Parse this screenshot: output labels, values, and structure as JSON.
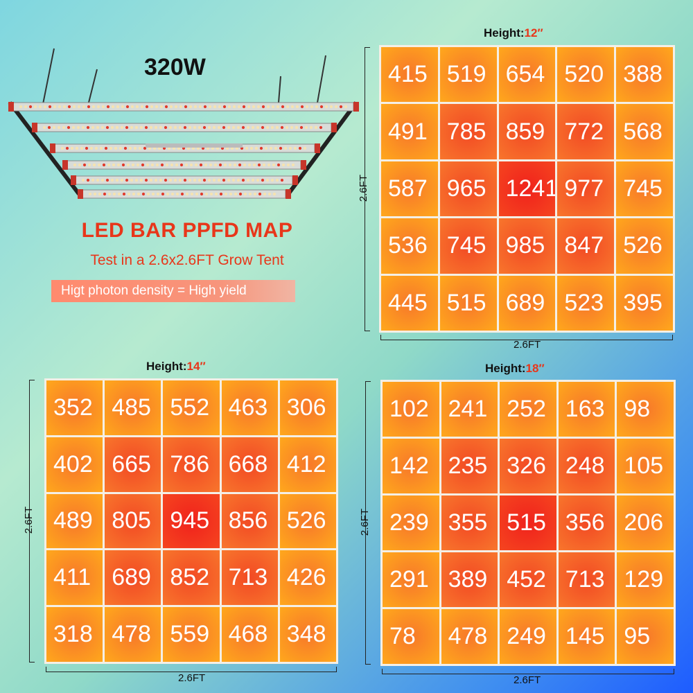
{
  "header": {
    "wattage": "320W",
    "title": "LED BAR PPFD MAP",
    "subtitle": "Test in a 2.6x2.6FT Grow Tent",
    "tagline": "Higt photon density = High yield"
  },
  "chart_data": [
    {
      "type": "heatmap",
      "title_prefix": "Height:",
      "height_value": "12″",
      "xlabel": "2.6FT",
      "ylabel": "2.6FT",
      "values": [
        [
          415,
          519,
          654,
          520,
          388
        ],
        [
          491,
          785,
          859,
          772,
          568
        ],
        [
          587,
          965,
          1241,
          977,
          745
        ],
        [
          536,
          745,
          985,
          847,
          526
        ],
        [
          445,
          515,
          689,
          523,
          395
        ]
      ]
    },
    {
      "type": "heatmap",
      "title_prefix": "Height:",
      "height_value": "14″",
      "xlabel": "2.6FT",
      "ylabel": "2.6FT",
      "values": [
        [
          352,
          485,
          552,
          463,
          306
        ],
        [
          402,
          665,
          786,
          668,
          412
        ],
        [
          489,
          805,
          945,
          856,
          526
        ],
        [
          411,
          689,
          852,
          713,
          426
        ],
        [
          318,
          478,
          559,
          468,
          348
        ]
      ]
    },
    {
      "type": "heatmap",
      "title_prefix": "Height:",
      "height_value": "18″",
      "xlabel": "2.6FT",
      "ylabel": "2.6FT",
      "values": [
        [
          102,
          241,
          252,
          163,
          98
        ],
        [
          142,
          235,
          326,
          248,
          105
        ],
        [
          239,
          355,
          515,
          356,
          206
        ],
        [
          291,
          389,
          452,
          713,
          129
        ],
        [
          78,
          478,
          249,
          145,
          95
        ]
      ]
    }
  ],
  "colors": {
    "title_red": "#e8361a",
    "cell_hot": "#f0221c",
    "cell_warm": "#f7672a",
    "cell_cool": "#ffa31c"
  }
}
